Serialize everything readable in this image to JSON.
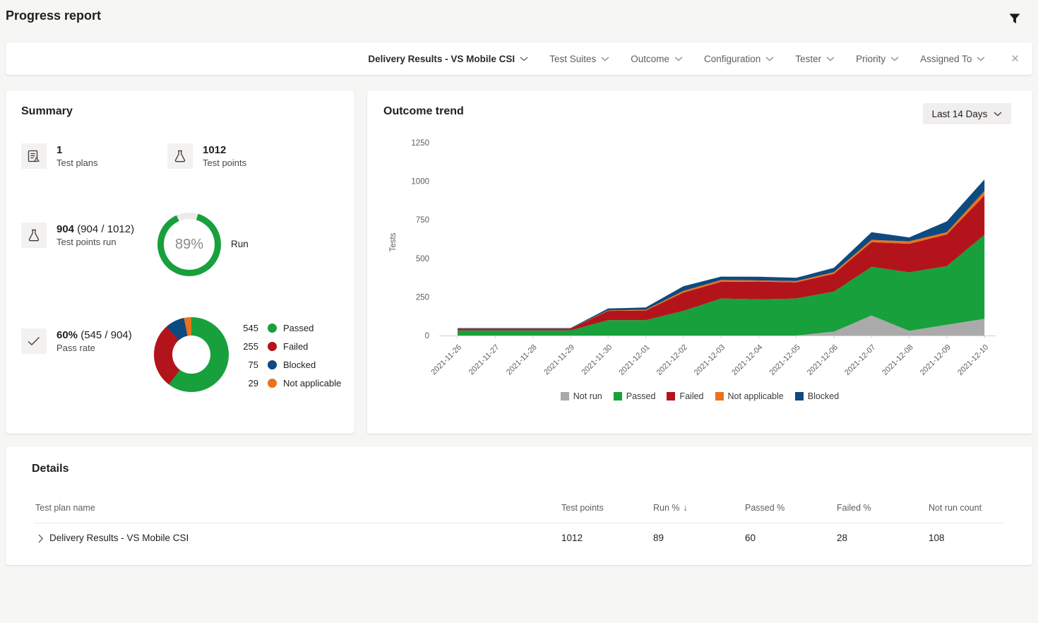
{
  "page": {
    "title": "Progress report"
  },
  "filter_bar": {
    "plan_filter": "Delivery Results - VS Mobile CSI",
    "filters": [
      "Test Suites",
      "Outcome",
      "Configuration",
      "Tester",
      "Priority",
      "Assigned To"
    ],
    "clear_glyph": "✕"
  },
  "summary": {
    "title": "Summary",
    "stats": {
      "test_plans": {
        "value": "1",
        "label": "Test plans"
      },
      "test_points": {
        "value": "1012",
        "label": "Test points"
      },
      "test_points_run": {
        "value": "904",
        "extra": " (904 / 1012)",
        "label": "Test points run"
      },
      "pass_rate": {
        "value": "60%",
        "extra": " (545 / 904)",
        "label": "Pass rate"
      }
    },
    "run_donut": {
      "percent": 89,
      "display": "89%",
      "label": "Run",
      "color": "#18A03C",
      "track_color": "#ECEBE9"
    },
    "outcome_donut": {
      "total": 904,
      "segments": [
        {
          "value": 545,
          "label": "Passed",
          "color": "#18A03C"
        },
        {
          "value": 255,
          "label": "Failed",
          "color": "#B3141C"
        },
        {
          "value": 75,
          "label": "Blocked",
          "color": "#0E4A7F"
        },
        {
          "value": 29,
          "label": "Not applicable",
          "color": "#E8731C"
        }
      ]
    }
  },
  "outcome_trend": {
    "title": "Outcome trend",
    "range_button": "Last 14 Days"
  },
  "chart_data": {
    "type": "area",
    "stacked": true,
    "title": "Outcome trend",
    "xlabel": "",
    "ylabel": "Tests",
    "ylim": [
      0,
      1250
    ],
    "yticks": [
      0,
      250,
      500,
      750,
      1000,
      1250
    ],
    "grid": false,
    "legend_position": "bottom",
    "categories": [
      "2021-11-26",
      "2021-11-27",
      "2021-11-28",
      "2021-11-29",
      "2021-11-30",
      "2021-12-01",
      "2021-12-02",
      "2021-12-03",
      "2021-12-04",
      "2021-12-05",
      "2021-12-06",
      "2021-12-07",
      "2021-12-08",
      "2021-12-09",
      "2021-12-10"
    ],
    "series": [
      {
        "name": "Not run",
        "color": "#AAAAAA",
        "values": [
          0,
          0,
          0,
          0,
          0,
          0,
          0,
          0,
          0,
          0,
          25,
          130,
          30,
          70,
          108
        ]
      },
      {
        "name": "Passed",
        "color": "#18A03C",
        "values": [
          33,
          33,
          33,
          33,
          100,
          100,
          160,
          240,
          235,
          240,
          260,
          315,
          380,
          380,
          545
        ]
      },
      {
        "name": "Failed",
        "color": "#B3141C",
        "values": [
          12,
          12,
          12,
          12,
          60,
          62,
          118,
          108,
          115,
          105,
          115,
          160,
          185,
          205,
          255
        ]
      },
      {
        "name": "Not applicable",
        "color": "#E8731C",
        "values": [
          0,
          0,
          0,
          0,
          3,
          5,
          11,
          12,
          7,
          8,
          11,
          15,
          16,
          15,
          29
        ]
      },
      {
        "name": "Blocked",
        "color": "#0E4A7F",
        "values": [
          3,
          3,
          3,
          3,
          12,
          15,
          30,
          22,
          24,
          21,
          28,
          50,
          25,
          70,
          75
        ]
      }
    ]
  },
  "details": {
    "title": "Details",
    "columns": [
      "Test plan name",
      "Test points",
      "Run %",
      "Passed %",
      "Failed %",
      "Not run count"
    ],
    "sort_indicator": "↓",
    "rows": [
      {
        "name": "Delivery Results - VS Mobile CSI",
        "test_points": "1012",
        "run_pct": "89",
        "passed_pct": "60",
        "failed_pct": "28",
        "not_run_count": "108"
      }
    ]
  }
}
